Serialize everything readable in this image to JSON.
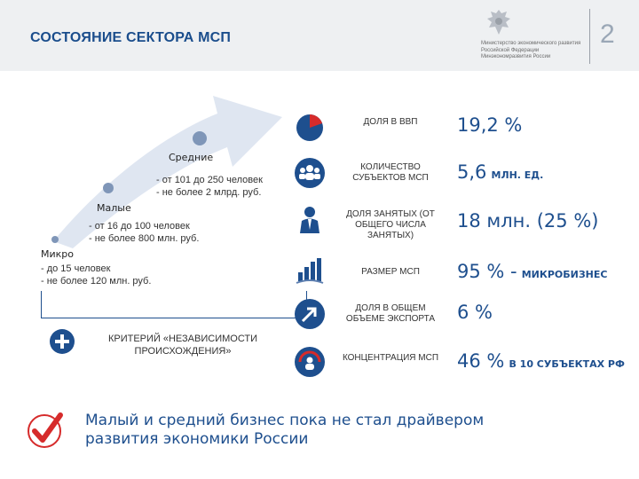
{
  "header": {
    "title": "СОСТОЯНИЕ СЕКТОРА МСП",
    "ministry_lines": [
      "Министерство экономического развития",
      "Российской Федерации",
      "Минэкономразвития России"
    ],
    "page_number": "2"
  },
  "segments": {
    "medium": {
      "label": "Средние",
      "lines": [
        "- от 101 до 250 человек",
        "- не более 2 млрд. руб."
      ]
    },
    "small": {
      "label": "Малые",
      "lines": [
        "- от 16 до 100 человек",
        "- не более 800 млн. руб."
      ]
    },
    "micro": {
      "label": "Микро",
      "lines": [
        "- до 15 человек",
        "- не более 120 млн. руб."
      ]
    }
  },
  "criterion": "КРИТЕРИЙ «НЕЗАВИСИМОСТИ ПРОИСХОЖДЕНИЯ»",
  "metrics": [
    {
      "icon": "pie-chart-icon",
      "label": "ДОЛЯ В ВВП",
      "value": "19,2 %",
      "unit": ""
    },
    {
      "icon": "group-people-icon",
      "label": "КОЛИЧЕСТВО СУБЪЕКТОВ МСП",
      "value": "5,6",
      "unit": "МЛН. ЕД."
    },
    {
      "icon": "person-icon",
      "label": "ДОЛЯ ЗАНЯТЫХ (ОТ ОБЩЕГО ЧИСЛА ЗАНЯТЫХ)",
      "value": "18 млн. (25 %)",
      "unit": ""
    },
    {
      "icon": "bar-growth-icon",
      "label": "РАЗМЕР МСП",
      "value": "95 % -",
      "unit": "МИКРОБИЗНЕС"
    },
    {
      "icon": "export-arrow-icon",
      "label": "ДОЛЯ В ОБЩЕМ ОБЪЕМЕ ЭКСПОРТА",
      "value": "6 %",
      "unit": ""
    },
    {
      "icon": "concentration-icon",
      "label": "КОНЦЕНТРАЦИЯ МСП",
      "value": "46 %",
      "unit": "В 10 СУБЪЕКТАХ РФ"
    }
  ],
  "conclusion": [
    "Малый и средний бизнес пока не стал драйвером",
    "развития экономики России"
  ],
  "colors": {
    "accent": "#1e4f8e",
    "red": "#d62b2b",
    "arrow": "#dfe6f1"
  }
}
